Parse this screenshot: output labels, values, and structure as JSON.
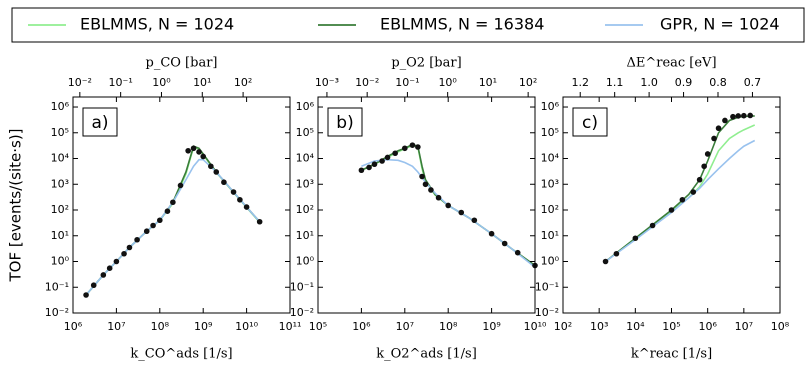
{
  "chart_data": [
    {
      "type": "line",
      "panel_label": "a)",
      "xscale": "log",
      "yscale": "log",
      "xlabel": "k_CO^ads [1/s]",
      "x2label": "p_CO [bar]",
      "ylabel": "TOF [events/(site·s)]",
      "xlim": [
        1000000,
        100000000000
      ],
      "ylim": [
        0.01,
        2450000
      ],
      "x2lim": [
        0.0068,
        1410
      ],
      "x2scale": "log",
      "xticks": [
        {
          "value": 1000000,
          "label": "10⁶"
        },
        {
          "value": 10000000,
          "label": "10⁷"
        },
        {
          "value": 100000000,
          "label": "10⁸"
        },
        {
          "value": 1000000000,
          "label": "10⁹"
        },
        {
          "value": 10000000000,
          "label": "10¹⁰"
        },
        {
          "value": 100000000000,
          "label": "10¹¹"
        }
      ],
      "x2ticks": [
        {
          "value": 0.01,
          "label": "10⁻²"
        },
        {
          "value": 0.1,
          "label": "10⁻¹"
        },
        {
          "value": 1,
          "label": "10⁰"
        },
        {
          "value": 10,
          "label": "10¹"
        },
        {
          "value": 100,
          "label": "10²"
        }
      ],
      "yticks": [
        {
          "value": 0.01,
          "label": "10⁻²"
        },
        {
          "value": 0.1,
          "label": "10⁻¹"
        },
        {
          "value": 1,
          "label": "10⁰"
        },
        {
          "value": 10,
          "label": "10¹"
        },
        {
          "value": 100,
          "label": "10²"
        },
        {
          "value": 1000,
          "label": "10³"
        },
        {
          "value": 10000,
          "label": "10⁴"
        },
        {
          "value": 100000,
          "label": "10⁵"
        },
        {
          "value": 1000000,
          "label": "10⁶"
        }
      ],
      "x": [
        2000000,
        5000000,
        10000000,
        20000000,
        50000000,
        100000000,
        200000000,
        400000000,
        600000000,
        800000000,
        1000000000,
        2000000000,
        5000000000,
        10000000000,
        20000000000
      ],
      "series": [
        {
          "name": "EBLMMS, N = 1024",
          "color": "#90ee90",
          "values": [
            0.05,
            0.3,
            1,
            3.5,
            15,
            40,
            180,
            2500,
            28000,
            23000,
            14000,
            2900,
            480,
            125,
            33
          ]
        },
        {
          "name": "EBLMMS, N = 16384",
          "color": "#3a7d3a",
          "values": [
            0.05,
            0.3,
            1,
            3.5,
            15,
            40,
            200,
            3000,
            30000,
            25000,
            15000,
            3000,
            500,
            130,
            35
          ]
        },
        {
          "name": "GPR, N = 1024",
          "color": "#99c2ee",
          "values": [
            0.05,
            0.3,
            1,
            3.5,
            15,
            40,
            200,
            1500,
            5000,
            9000,
            9000,
            3000,
            500,
            130,
            35
          ]
        }
      ],
      "points": {
        "color": "#111111",
        "x": [
          2000000,
          3000000,
          5000000,
          7000000,
          10000000,
          15000000,
          20000000,
          30000000,
          50000000,
          70000000,
          100000000,
          150000000,
          200000000,
          300000000,
          450000000,
          600000000,
          800000000,
          1000000000,
          1500000000,
          2000000000,
          3000000000,
          5000000000,
          7000000000,
          10000000000,
          20000000000
        ],
        "y": [
          0.05,
          0.12,
          0.3,
          0.55,
          1,
          2,
          3.5,
          7,
          15,
          25,
          40,
          90,
          200,
          900,
          20000,
          25000,
          18000,
          12000,
          5000,
          3000,
          1200,
          500,
          250,
          130,
          35
        ]
      }
    },
    {
      "type": "line",
      "panel_label": "b)",
      "xscale": "log",
      "yscale": "log",
      "xlabel": "k_O2^ads [1/s]",
      "x2label": "p_O2 [bar]",
      "xlim": [
        100000,
        10000000000
      ],
      "ylim": [
        0.01,
        2450000
      ],
      "x2lim": [
        0.0006,
        148
      ],
      "x2scale": "log",
      "xticks": [
        {
          "value": 100000,
          "label": "10⁵"
        },
        {
          "value": 1000000,
          "label": "10⁶"
        },
        {
          "value": 10000000,
          "label": "10⁷"
        },
        {
          "value": 100000000,
          "label": "10⁸"
        },
        {
          "value": 1000000000,
          "label": "10⁹"
        },
        {
          "value": 10000000000,
          "label": "10¹⁰"
        }
      ],
      "x2ticks": [
        {
          "value": 0.001,
          "label": "10⁻³"
        },
        {
          "value": 0.01,
          "label": "10⁻²"
        },
        {
          "value": 0.1,
          "label": "10⁻¹"
        },
        {
          "value": 1,
          "label": "10⁰"
        },
        {
          "value": 10,
          "label": "10¹"
        },
        {
          "value": 100,
          "label": "10²"
        }
      ],
      "yticks": [
        {
          "value": 0.01,
          "label": "10⁻²"
        },
        {
          "value": 0.1,
          "label": "10⁻¹"
        },
        {
          "value": 1,
          "label": "10⁰"
        },
        {
          "value": 10,
          "label": "10¹"
        },
        {
          "value": 100,
          "label": "10²"
        },
        {
          "value": 1000,
          "label": "10³"
        },
        {
          "value": 10000,
          "label": "10⁴"
        },
        {
          "value": 100000,
          "label": "10⁵"
        },
        {
          "value": 1000000,
          "label": "10⁶"
        }
      ],
      "x": [
        1000000,
        2000000,
        4000000,
        7000000,
        10000000,
        15000000,
        20000000,
        25000000,
        30000000,
        50000000,
        100000000,
        300000000,
        1000000000,
        3000000000,
        10000000000
      ],
      "series": [
        {
          "name": "EBLMMS, N = 1024",
          "color": "#90ee90",
          "values": [
            3500,
            6000,
            11000,
            18000,
            24000,
            32000,
            28000,
            4000,
            1300,
            380,
            150,
            50,
            12,
            3,
            0.7
          ]
        },
        {
          "name": "EBLMMS, N = 16384",
          "color": "#3a7d3a",
          "values": [
            3500,
            6000,
            12000,
            20000,
            25000,
            35000,
            30000,
            5000,
            1500,
            400,
            150,
            50,
            12,
            3,
            0.7
          ]
        },
        {
          "name": "GPR, N = 1024",
          "color": "#99c2ee",
          "values": [
            5000,
            8000,
            9000,
            8500,
            7000,
            5000,
            3000,
            1800,
            1200,
            450,
            150,
            50,
            12,
            3,
            0.6
          ]
        }
      ],
      "points": {
        "color": "#111111",
        "x": [
          1000000,
          1500000,
          2000000,
          3000000,
          4000000,
          6000000,
          10000000,
          15000000,
          20000000,
          25000000,
          30000000,
          40000000,
          60000000,
          100000000,
          200000000,
          400000000,
          1000000000,
          2000000000,
          4000000000,
          10000000000
        ],
        "y": [
          3500,
          4500,
          6000,
          8000,
          11000,
          16000,
          25000,
          33000,
          28000,
          2000,
          1000,
          600,
          300,
          150,
          80,
          40,
          12,
          5,
          2.2,
          0.7
        ]
      }
    },
    {
      "type": "line",
      "panel_label": "c)",
      "xscale": "log",
      "yscale": "log",
      "xlabel": "k^reac [1/s]",
      "x2label": "ΔE^reac [eV]",
      "xlim": [
        100,
        100000000
      ],
      "ylim": [
        0.01,
        2450000
      ],
      "x2lim": [
        1.25,
        0.62
      ],
      "x2scale": "linear",
      "xticks": [
        {
          "value": 100,
          "label": "10²"
        },
        {
          "value": 1000,
          "label": "10³"
        },
        {
          "value": 10000,
          "label": "10⁴"
        },
        {
          "value": 100000,
          "label": "10⁵"
        },
        {
          "value": 1000000,
          "label": "10⁶"
        },
        {
          "value": 10000000,
          "label": "10⁷"
        },
        {
          "value": 100000000,
          "label": "10⁸"
        }
      ],
      "x2ticks": [
        1.2,
        1.1,
        {
          "value": 1,
          "label": "1.0"
        },
        0.9,
        0.8,
        0.7
      ],
      "yticks": [
        {
          "value": 0.01,
          "label": "10⁻²"
        },
        {
          "value": 0.1,
          "label": "10⁻¹"
        },
        {
          "value": 1,
          "label": "10⁰"
        },
        {
          "value": 10,
          "label": "10¹"
        },
        {
          "value": 100,
          "label": "10²"
        },
        {
          "value": 1000,
          "label": "10³"
        },
        {
          "value": 10000,
          "label": "10⁴"
        },
        {
          "value": 100000,
          "label": "10⁵"
        },
        {
          "value": 1000000,
          "label": "10⁶"
        }
      ],
      "x": [
        1500,
        10000,
        100000,
        300000,
        600000,
        1000000,
        2000000,
        4000000,
        7000000,
        10000000,
        20000000
      ],
      "series": [
        {
          "name": "EBLMMS, N = 1024",
          "color": "#90ee90",
          "values": [
            1,
            8,
            90,
            300,
            800,
            2500,
            20000,
            60000,
            100000,
            130000,
            200000
          ]
        },
        {
          "name": "EBLMMS, N = 16384",
          "color": "#3a7d3a",
          "values": [
            1,
            8,
            100,
            400,
            1500,
            8000,
            100000,
            300000,
            400000,
            430000,
            450000
          ]
        },
        {
          "name": "GPR, N = 1024",
          "color": "#99c2ee",
          "values": [
            1,
            7,
            80,
            300,
            700,
            1500,
            4000,
            10000,
            20000,
            30000,
            50000
          ]
        }
      ],
      "points": {
        "color": "#111111",
        "x": [
          1500,
          3000,
          10000,
          30000,
          100000,
          200000,
          400000,
          600000,
          800000,
          1000000,
          1500000,
          2000000,
          3000000,
          5000000,
          7000000,
          10000000,
          15000000
        ],
        "y": [
          1,
          2,
          8,
          25,
          100,
          250,
          500,
          1500,
          5000,
          15000,
          60000,
          150000,
          300000,
          420000,
          450000,
          460000,
          470000
        ]
      }
    }
  ]
}
